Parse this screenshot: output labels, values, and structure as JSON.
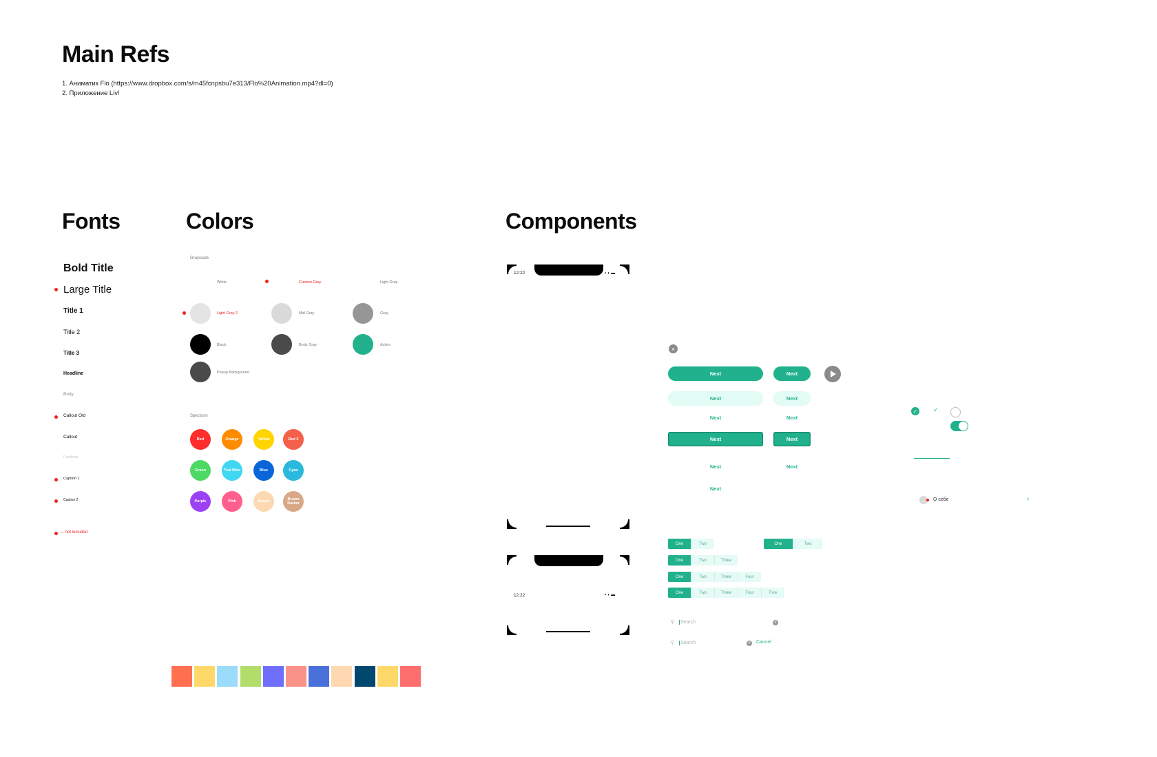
{
  "main": {
    "title": "Main Refs",
    "refs": [
      "1. Аниматик Flo (https://www.dropbox.com/s/m45fcnpsbu7e313/Flo%20Animation.mp4?dl=0)",
      "2. Приложение Liv!"
    ]
  },
  "fonts": {
    "title": "Fonts",
    "items": [
      "Bold Title",
      "Large Title",
      "Title 1",
      "Title 2",
      "Title 3",
      "Headline",
      "Body",
      "Callout Old",
      "Callout",
      "Footnote",
      "Caption 1",
      "Caption 2"
    ],
    "legend": "— not included"
  },
  "colors": {
    "title": "Colors",
    "grayscale_label": "Grayscale",
    "grayscale": [
      {
        "name": "White",
        "hex": "#ffffff"
      },
      {
        "name": "Custom Gray",
        "hex": "#ffffff"
      },
      {
        "name": "Light Gray",
        "hex": "#ffffff"
      },
      {
        "name": "Light Gray 2",
        "hex": "#e4e4e4"
      },
      {
        "name": "Mid Gray",
        "hex": "#dadada"
      },
      {
        "name": "Gray",
        "hex": "#969696"
      },
      {
        "name": "Black",
        "hex": "#000000"
      },
      {
        "name": "Body Gray",
        "hex": "#4a4a4a"
      },
      {
        "name": "Action",
        "hex": "#21b28d"
      },
      {
        "name": "Popup Background",
        "hex": "#4a4a4a"
      }
    ],
    "spectrum_label": "Spectrum",
    "spectrum": [
      {
        "name": "Red",
        "hex": "#ff2d2d"
      },
      {
        "name": "Orange",
        "hex": "#ff8c00"
      },
      {
        "name": "Yellow",
        "hex": "#ffd500"
      },
      {
        "name": "Red 2",
        "hex": "#f5604a"
      },
      {
        "name": "Green",
        "hex": "#4cd964"
      },
      {
        "name": "Teal Blue",
        "hex": "#3fd7f2"
      },
      {
        "name": "Blue",
        "hex": "#0a66d8"
      },
      {
        "name": "Cyan",
        "hex": "#2ab9dc"
      },
      {
        "name": "Purple",
        "hex": "#9b42f5"
      },
      {
        "name": "Pink",
        "hex": "#ff5f8d"
      },
      {
        "name": "Brown",
        "hex": "#fcd9b3"
      },
      {
        "name": "Brown Darker",
        "hex": "#d8a886"
      }
    ],
    "palette": [
      "#ff7050",
      "#ffd86a",
      "#9adcfa",
      "#b3dd6a",
      "#6f6ffb",
      "#fb928a",
      "#4a70da",
      "#fdd8b0",
      "#02476e",
      "#ffd86a",
      "#fd6f6f"
    ]
  },
  "components": {
    "title": "Components",
    "status_time": "12:22",
    "button_label": "Next",
    "segments": {
      "one": "One",
      "two": "Two",
      "three": "Three",
      "four": "Four",
      "five": "Five"
    },
    "search_placeholder": "Search",
    "cancel_label": "Cancel",
    "about_label": "О себе",
    "accent": "#21b28d"
  }
}
